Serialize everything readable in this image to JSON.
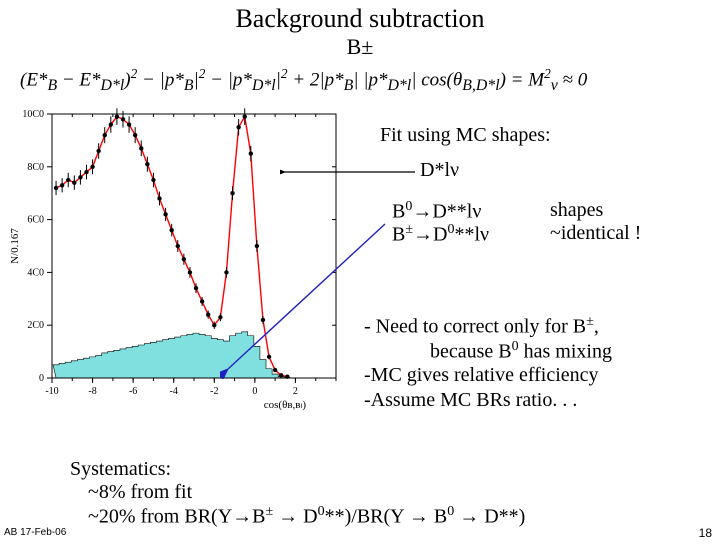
{
  "title": "Background subtraction",
  "subtitle": "B±",
  "formula": "(E*ʙ − E*ʙ*ₗ)² − |p*ʙ|² − |p*ʙ*ₗ|² + 2|p*ʙ||p*ʙ*ₗ| cos(θʙ,ʙ*ₗ) = M²ᵥ ≈ 0",
  "fit_label": "Fit using  MC shapes:",
  "d_star": "D*lν",
  "decay1": "B⁰→D**lν",
  "decay2": "B±→D⁰**lν",
  "shapes_label": "shapes",
  "identical_label": "~identical !",
  "bullet1": "- Need to correct only for B±,",
  "bullet1b": "because B⁰ has mixing",
  "bullet2": "-MC gives relative efficiency",
  "bullet3": "-Assume MC BRs ratio. . .",
  "sys_title": "Systematics:",
  "sys_line1": "~8% from fit",
  "sys_line2": "~20% from BR(Y→B± → D⁰**)/BR(Y → B⁰ → D**)",
  "footer": "AB 17-Feb-06",
  "page": "18",
  "chart": {
    "xlim": [
      -10,
      4
    ],
    "ylim": [
      0,
      1000
    ],
    "xticks": [
      -10,
      -8,
      -6,
      -4,
      -2,
      0,
      2
    ],
    "yticks": [
      0,
      200,
      400,
      600,
      800,
      1000
    ],
    "ytick_labels": [
      "0",
      "2C0",
      "4C0",
      "6C0",
      "8C0",
      "10C0"
    ],
    "ylabel": "N/0.167",
    "xlabel": "cos(θʙ,ʙₗ)",
    "bg_color": "#ffffff",
    "axis_color": "#000000",
    "fill_color": "#80e0e0",
    "line_color": "#ff0000",
    "marker_color": "#000000",
    "data_points_x": [
      -9.8,
      -9.5,
      -9.2,
      -8.9,
      -8.6,
      -8.3,
      -8.0,
      -7.7,
      -7.4,
      -7.1,
      -6.8,
      -6.5,
      -6.2,
      -5.9,
      -5.6,
      -5.3,
      -5.0,
      -4.7,
      -4.4,
      -4.1,
      -3.8,
      -3.5,
      -3.2,
      -2.9,
      -2.6,
      -2.3,
      -2.0,
      -1.7,
      -1.4,
      -1.1,
      -0.8,
      -0.5,
      -0.2,
      0.1,
      0.4,
      0.7,
      1.0,
      1.3,
      1.6
    ],
    "data_points_y": [
      720,
      730,
      750,
      740,
      760,
      780,
      800,
      860,
      920,
      960,
      990,
      980,
      960,
      920,
      870,
      810,
      750,
      680,
      620,
      560,
      500,
      450,
      400,
      340,
      290,
      240,
      200,
      230,
      400,
      700,
      950,
      990,
      850,
      500,
      220,
      80,
      30,
      10,
      5
    ],
    "histogram_y": [
      50,
      55,
      60,
      65,
      70,
      75,
      80,
      85,
      95,
      100,
      105,
      110,
      115,
      120,
      125,
      130,
      135,
      140,
      145,
      150,
      155,
      160,
      165,
      170,
      165,
      160,
      150,
      145,
      140,
      160,
      170,
      175,
      160,
      120,
      70,
      35,
      15,
      5,
      2
    ]
  }
}
